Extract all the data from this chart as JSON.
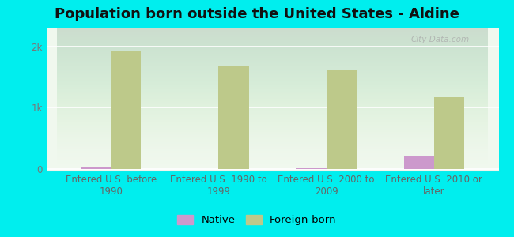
{
  "title": "Population born outside the United States - Aldine",
  "categories": [
    "Entered U.S. before\n1990",
    "Entered U.S. 1990 to\n1999",
    "Entered U.S. 2000 to\n2009",
    "Entered U.S. 2010 or\nlater"
  ],
  "native_values": [
    30,
    0,
    10,
    220
  ],
  "foreign_born_values": [
    1920,
    1680,
    1620,
    1180
  ],
  "bar_width": 0.28,
  "native_color": "#cc99cc",
  "foreign_born_color": "#bdc98a",
  "background_outer": "#00eeee",
  "grid_color": "#ffffff",
  "yticks": [
    0,
    1000,
    2000
  ],
  "ytick_labels": [
    "0",
    "1k",
    "2k"
  ],
  "ylim": [
    -30,
    2300
  ],
  "title_fontsize": 13,
  "axis_fontsize": 8.5,
  "legend_fontsize": 9.5,
  "watermark": "City-Data.com"
}
